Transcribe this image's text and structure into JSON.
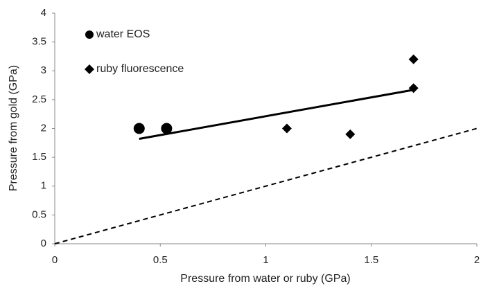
{
  "chart_data": {
    "type": "scatter",
    "x_label": "Pressure from water or ruby (GPa)",
    "y_label": "Pressure from gold  (GPa)",
    "series": [
      {
        "name": "water EOS",
        "color": "#000000",
        "marker": "circle",
        "x": [
          0.4,
          0.53
        ],
        "values": [
          2.0,
          2.0
        ]
      },
      {
        "name": "ruby fluorescence",
        "color": "#000000",
        "marker": "diamond",
        "x": [
          1.1,
          1.4,
          1.7,
          1.7
        ],
        "values": [
          2.0,
          1.9,
          3.2,
          2.7
        ]
      }
    ],
    "trendline": {
      "color": "#000000",
      "dashed": false,
      "x": [
        0.4,
        1.7
      ],
      "values": [
        1.82,
        2.67
      ]
    },
    "reference_line": {
      "color": "#000000",
      "dashed": true,
      "x": [
        0,
        2
      ],
      "values": [
        0,
        2
      ]
    },
    "xlim": [
      0,
      2
    ],
    "xticks": [
      0,
      0.5,
      1,
      1.5,
      2
    ],
    "ylim": [
      0,
      4
    ],
    "yticks": [
      0,
      0.5,
      1,
      1.5,
      2,
      2.5,
      3,
      3.5,
      4
    ],
    "grid": false,
    "legend": "top-left"
  }
}
